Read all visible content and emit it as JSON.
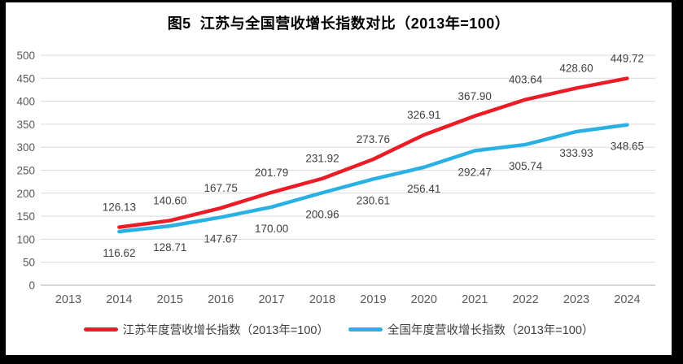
{
  "page": {
    "frame_color": "#000000",
    "background_color": "#ffffff"
  },
  "chart_data": {
    "type": "line",
    "title": "图5  江苏与全国营收增长指数对比（2013年=100）",
    "categories": [
      "2013",
      "2014",
      "2015",
      "2016",
      "2017",
      "2018",
      "2019",
      "2020",
      "2021",
      "2022",
      "2023",
      "2024"
    ],
    "series": [
      {
        "name": "江苏年度营收增长指数（2013年=100）",
        "color": "#eb1c25",
        "label_position": "above",
        "values": [
          null,
          126.13,
          140.6,
          167.75,
          201.79,
          231.92,
          273.76,
          326.91,
          367.9,
          403.64,
          428.6,
          449.72
        ]
      },
      {
        "name": "全国年度营收增长指数（2013年=100）",
        "color": "#2ab0e3",
        "label_position": "below",
        "values": [
          null,
          116.62,
          128.71,
          147.67,
          170.0,
          200.96,
          230.61,
          256.41,
          292.47,
          305.74,
          333.93,
          348.65
        ]
      }
    ],
    "ylim": [
      0,
      500
    ],
    "ytick_step": 50,
    "yticks": [
      0,
      50,
      100,
      150,
      200,
      250,
      300,
      350,
      400,
      450,
      500
    ],
    "grid": true,
    "data_labels": true,
    "label_decimals": 2,
    "legend_position": "bottom"
  },
  "style": {
    "gridline_color": "#d9d9d9",
    "axisline_color": "#bfbfbf",
    "tick_label_color": "#595959",
    "data_label_color": "#404040",
    "title_color": "#000000",
    "series1_color": "#eb1c25",
    "series2_color": "#2ab0e3"
  }
}
